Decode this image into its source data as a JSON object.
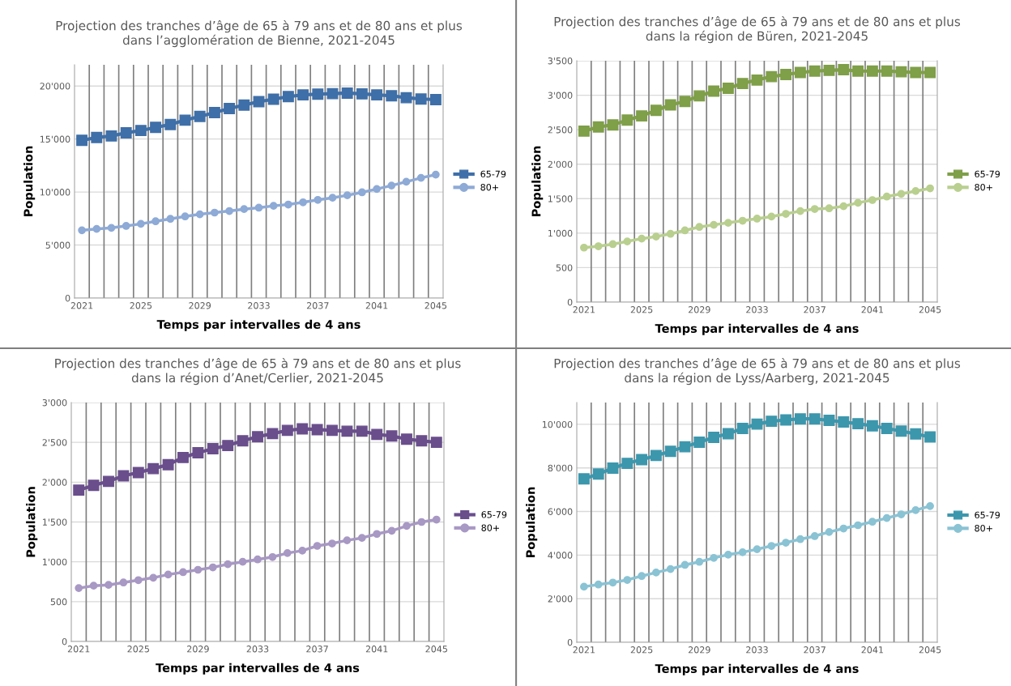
{
  "chart_data": [
    {
      "type": "line",
      "title": "Projection des tranches d’âge de 65 à 79 ans et de 80 ans et plus\ndans l’agglomération de Bienne, 2021-2045",
      "xlabel": "Temps par intervalles de 4 ans",
      "ylabel": "Population",
      "categories": [
        "2021",
        null,
        null,
        null,
        "2025",
        null,
        null,
        null,
        "2029",
        null,
        null,
        null,
        "2033",
        null,
        null,
        null,
        "2037",
        null,
        null,
        null,
        "2041",
        null,
        null,
        null,
        "2045"
      ],
      "ylim": [
        0,
        22000
      ],
      "yticks": [
        0,
        {
          "value": 5000,
          "label": "5'000"
        },
        {
          "value": 10000,
          "label": "10'000"
        },
        {
          "value": 15000,
          "label": "15'000"
        },
        {
          "value": 20000,
          "label": "20'000"
        }
      ],
      "grid": true,
      "legend": "right",
      "line_style": "solid",
      "series": [
        {
          "name": "65-79",
          "color": "#3f6fa8",
          "marker": "square",
          "values": [
            14880,
            15140,
            15290,
            15580,
            15800,
            16100,
            16370,
            16780,
            17130,
            17490,
            17880,
            18200,
            18520,
            18750,
            19000,
            19160,
            19230,
            19280,
            19330,
            19260,
            19160,
            19080,
            18900,
            18770,
            18720
          ]
        },
        {
          "name": "80+",
          "color": "#8eaad6",
          "marker": "circle",
          "values": [
            6390,
            6520,
            6620,
            6800,
            7000,
            7240,
            7470,
            7700,
            7900,
            8060,
            8210,
            8390,
            8520,
            8700,
            8820,
            9030,
            9260,
            9460,
            9690,
            9970,
            10280,
            10610,
            10970,
            11330,
            11640
          ]
        }
      ]
    },
    {
      "type": "line",
      "title": "Projection des tranches d’âge de 65 à 79 ans et de 80 ans et plus\ndans la région de Büren, 2021-2045",
      "xlabel": "Temps par intervalles de 4 ans",
      "ylabel": "Population",
      "categories": [
        "2021",
        null,
        null,
        null,
        "2025",
        null,
        null,
        null,
        "2029",
        null,
        null,
        null,
        "2033",
        null,
        null,
        null,
        "2037",
        null,
        null,
        null,
        "2041",
        null,
        null,
        null,
        "2045"
      ],
      "ylim": [
        0,
        3500
      ],
      "yticks": [
        0,
        500,
        {
          "value": 1000,
          "label": "1'000"
        },
        {
          "value": 1500,
          "label": "1'500"
        },
        {
          "value": 2000,
          "label": "2'000"
        },
        {
          "value": 2500,
          "label": "2'500"
        },
        {
          "value": 3000,
          "label": "3'000"
        },
        {
          "value": 3500,
          "label": "3'500"
        }
      ],
      "grid": true,
      "legend": "right",
      "line_style": "solid",
      "series": [
        {
          "name": "65-79",
          "color": "#7f9f48",
          "marker": "square",
          "values": [
            2480,
            2540,
            2570,
            2640,
            2700,
            2780,
            2860,
            2910,
            2990,
            3060,
            3100,
            3170,
            3220,
            3270,
            3300,
            3330,
            3350,
            3360,
            3370,
            3350,
            3350,
            3350,
            3340,
            3330,
            3330
          ]
        },
        {
          "name": "80+",
          "color": "#b9cf8f",
          "marker": "circle",
          "values": [
            790,
            810,
            840,
            880,
            920,
            950,
            990,
            1040,
            1090,
            1120,
            1150,
            1180,
            1210,
            1240,
            1280,
            1320,
            1350,
            1360,
            1390,
            1440,
            1480,
            1530,
            1570,
            1610,
            1650
          ]
        }
      ]
    },
    {
      "type": "line",
      "title": "Projection des tranches d’âge de 65 à 79 ans et de 80 ans et plus\ndans la région d’Anet/Cerlier, 2021-2045",
      "xlabel": "Temps par intervalles de 4 ans",
      "ylabel": "Population",
      "categories": [
        "2021",
        null,
        null,
        null,
        "2025",
        null,
        null,
        null,
        "2029",
        null,
        null,
        null,
        "2033",
        null,
        null,
        null,
        "2037",
        null,
        null,
        null,
        "2041",
        null,
        null,
        null,
        "2045"
      ],
      "ylim": [
        0,
        3000
      ],
      "yticks": [
        0,
        500,
        {
          "value": 1000,
          "label": "1'000"
        },
        {
          "value": 1500,
          "label": "1'500"
        },
        {
          "value": 2000,
          "label": "2'000"
        },
        {
          "value": 2500,
          "label": "2'500"
        },
        {
          "value": 3000,
          "label": "3'000"
        }
      ],
      "grid": true,
      "legend": "right",
      "line_style": "solid",
      "series": [
        {
          "name": "65-79",
          "color": "#6a4e8c",
          "marker": "square",
          "values": [
            1900,
            1960,
            2010,
            2080,
            2120,
            2170,
            2220,
            2310,
            2370,
            2420,
            2460,
            2520,
            2570,
            2610,
            2650,
            2670,
            2660,
            2650,
            2640,
            2640,
            2600,
            2580,
            2540,
            2520,
            2500
          ]
        },
        {
          "name": "80+",
          "color": "#a898c4",
          "marker": "circle",
          "values": [
            670,
            700,
            710,
            740,
            770,
            800,
            840,
            870,
            900,
            930,
            970,
            1000,
            1030,
            1060,
            1110,
            1140,
            1200,
            1230,
            1270,
            1300,
            1350,
            1390,
            1450,
            1500,
            1530
          ]
        }
      ]
    },
    {
      "type": "line",
      "title": "Projection des tranches d’âge de 65 à 79 ans et de 80 ans et plus\ndans la région de Lyss/Aarberg, 2021-2045",
      "xlabel": "Temps par intervalles de 4 ans",
      "ylabel": "Population",
      "categories": [
        "2021",
        null,
        null,
        null,
        "2025",
        null,
        null,
        null,
        "2029",
        null,
        null,
        null,
        "2033",
        null,
        null,
        null,
        "2037",
        null,
        null,
        null,
        "2041",
        null,
        null,
        null,
        "2045"
      ],
      "ylim": [
        0,
        11000
      ],
      "yticks": [
        0,
        {
          "value": 2000,
          "label": "2'000"
        },
        {
          "value": 4000,
          "label": "4'000"
        },
        {
          "value": 6000,
          "label": "6'000"
        },
        {
          "value": 8000,
          "label": "8'000"
        },
        {
          "value": 10000,
          "label": "10'000"
        }
      ],
      "grid": true,
      "legend": "right",
      "line_style": "solid",
      "series": [
        {
          "name": "65-79",
          "color": "#3c97ad",
          "marker": "square",
          "values": [
            7500,
            7720,
            7990,
            8210,
            8380,
            8570,
            8760,
            8970,
            9180,
            9400,
            9570,
            9810,
            10010,
            10140,
            10200,
            10250,
            10250,
            10180,
            10110,
            10030,
            9930,
            9810,
            9690,
            9560,
            9420
          ]
        },
        {
          "name": "80+",
          "color": "#8ac3d4",
          "marker": "circle",
          "values": [
            2550,
            2650,
            2740,
            2860,
            3040,
            3200,
            3360,
            3550,
            3690,
            3870,
            4020,
            4130,
            4270,
            4420,
            4570,
            4730,
            4870,
            5060,
            5220,
            5370,
            5530,
            5700,
            5870,
            6060,
            6250
          ]
        }
      ]
    }
  ]
}
